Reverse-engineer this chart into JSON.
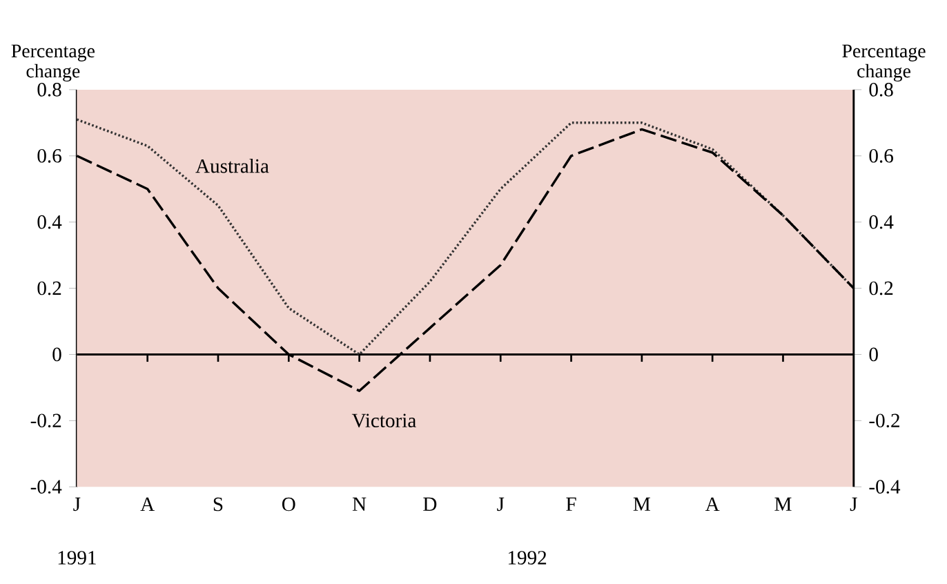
{
  "chart_data": {
    "type": "line",
    "ylabel": "Percentage change",
    "y2label": "Percentage change",
    "categories": [
      "J",
      "A",
      "S",
      "O",
      "N",
      "D",
      "J",
      "F",
      "M",
      "A",
      "M",
      "J"
    ],
    "series": [
      {
        "name": "Australia",
        "color": "#333333",
        "line_style": "dotted",
        "values": [
          0.71,
          0.63,
          0.45,
          0.14,
          0.0,
          0.22,
          0.5,
          0.7,
          0.7,
          0.62,
          0.42,
          0.2
        ]
      },
      {
        "name": "Victoria",
        "color": "#000000",
        "line_style": "dashed",
        "values": [
          0.6,
          0.5,
          0.2,
          0.0,
          -0.11,
          0.08,
          0.27,
          0.6,
          0.68,
          0.61,
          0.42,
          0.2
        ]
      }
    ],
    "ylim": [
      -0.4,
      0.8
    ],
    "yticks": [
      -0.4,
      -0.2,
      0,
      0.2,
      0.4,
      0.6,
      0.8
    ],
    "y2lim": [
      -0.4,
      0.8
    ],
    "y2ticks": [
      -0.4,
      -0.2,
      0,
      0.2,
      0.4,
      0.6,
      0.8
    ],
    "ref_lines": [
      {
        "axis": "y",
        "value": 0
      }
    ],
    "grid": false,
    "legend": false,
    "marker": "none",
    "annotations": [
      "1991",
      "1992"
    ]
  }
}
